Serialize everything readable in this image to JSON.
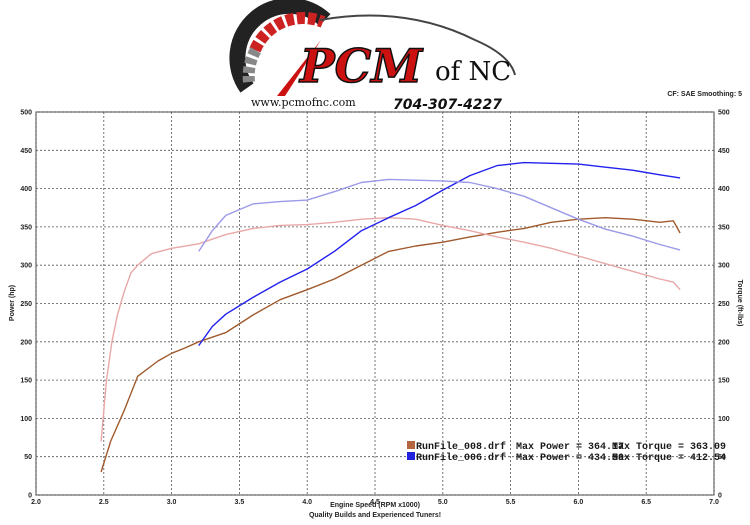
{
  "logo": {
    "brand": "PCM",
    "brand_suffix": "of NC",
    "website": "www.pcmofnc.com",
    "phone": "704-307-4227"
  },
  "settings_text": "CF: SAE  Smoothing: 5",
  "chart_data": {
    "type": "line",
    "title": "",
    "xlabel": "Engine Speed (RPM x1000)",
    "subtitle": "Quality Builds and Experienced Tuners!",
    "ylabel": "Power (hp)",
    "y2label": "Torque (ft-lbs)",
    "xlim": [
      2.0,
      7.0
    ],
    "ylim": [
      0,
      500
    ],
    "y2lim": [
      0,
      500
    ],
    "xticks": [
      "2.0",
      "2.5",
      "3.0",
      "3.5",
      "4.0",
      "4.5",
      "5.0",
      "5.5",
      "6.0",
      "6.5",
      "7.0"
    ],
    "yticks": [
      "0",
      "50",
      "100",
      "150",
      "200",
      "250",
      "300",
      "350",
      "400",
      "450",
      "500"
    ],
    "grid": true,
    "legend": [
      {
        "file": "RunFile_008.drf",
        "max_power": "Max Power = 364.17",
        "max_torque": "Max Torque = 363.09",
        "color": "#b3663d"
      },
      {
        "file": "RunFile_006.drf",
        "max_power": "Max Power = 434.50",
        "max_torque": "Max Torque = 412.54",
        "color": "#2222dd"
      }
    ],
    "series": [
      {
        "kind": "power",
        "run": "RunFile_008.drf",
        "color": "#a05a2c",
        "x": [
          2.48,
          2.55,
          2.65,
          2.75,
          2.9,
          3.0,
          3.1,
          3.2,
          3.4,
          3.6,
          3.8,
          4.0,
          4.2,
          4.4,
          4.6,
          4.8,
          5.0,
          5.2,
          5.4,
          5.6,
          5.8,
          6.0,
          6.2,
          6.4,
          6.6,
          6.7,
          6.75
        ],
        "y": [
          30,
          70,
          110,
          155,
          175,
          185,
          192,
          200,
          212,
          235,
          255,
          268,
          282,
          300,
          318,
          325,
          330,
          337,
          343,
          348,
          356,
          360,
          362,
          360,
          356,
          358,
          342
        ]
      },
      {
        "kind": "torque",
        "run": "RunFile_008.drf",
        "color": "#e8a8a8",
        "x": [
          2.48,
          2.52,
          2.56,
          2.6,
          2.65,
          2.7,
          2.75,
          2.85,
          3.0,
          3.2,
          3.4,
          3.6,
          3.8,
          4.0,
          4.2,
          4.4,
          4.6,
          4.8,
          5.0,
          5.2,
          5.4,
          5.6,
          5.8,
          6.0,
          6.2,
          6.4,
          6.6,
          6.7,
          6.75
        ],
        "y": [
          70,
          150,
          200,
          235,
          265,
          290,
          300,
          315,
          322,
          328,
          340,
          348,
          352,
          353,
          356,
          360,
          362,
          360,
          352,
          345,
          337,
          330,
          322,
          312,
          302,
          292,
          282,
          278,
          268
        ]
      },
      {
        "kind": "power",
        "run": "RunFile_006.drf",
        "color": "#2222ee",
        "x": [
          3.2,
          3.3,
          3.4,
          3.6,
          3.8,
          4.0,
          4.2,
          4.4,
          4.6,
          4.8,
          5.0,
          5.2,
          5.4,
          5.5,
          5.6,
          5.8,
          6.0,
          6.2,
          6.4,
          6.6,
          6.75
        ],
        "y": [
          195,
          220,
          236,
          258,
          278,
          295,
          318,
          345,
          362,
          378,
          398,
          417,
          430,
          432,
          434,
          433,
          432,
          428,
          424,
          418,
          414
        ]
      },
      {
        "kind": "torque",
        "run": "RunFile_006.drf",
        "color": "#9a9ae8",
        "x": [
          3.2,
          3.3,
          3.4,
          3.6,
          3.8,
          4.0,
          4.2,
          4.4,
          4.6,
          4.8,
          5.0,
          5.2,
          5.4,
          5.6,
          5.8,
          6.0,
          6.2,
          6.4,
          6.6,
          6.75
        ],
        "y": [
          318,
          345,
          365,
          380,
          383,
          385,
          396,
          408,
          412,
          411,
          410,
          408,
          400,
          390,
          375,
          360,
          347,
          338,
          327,
          320
        ]
      }
    ]
  }
}
